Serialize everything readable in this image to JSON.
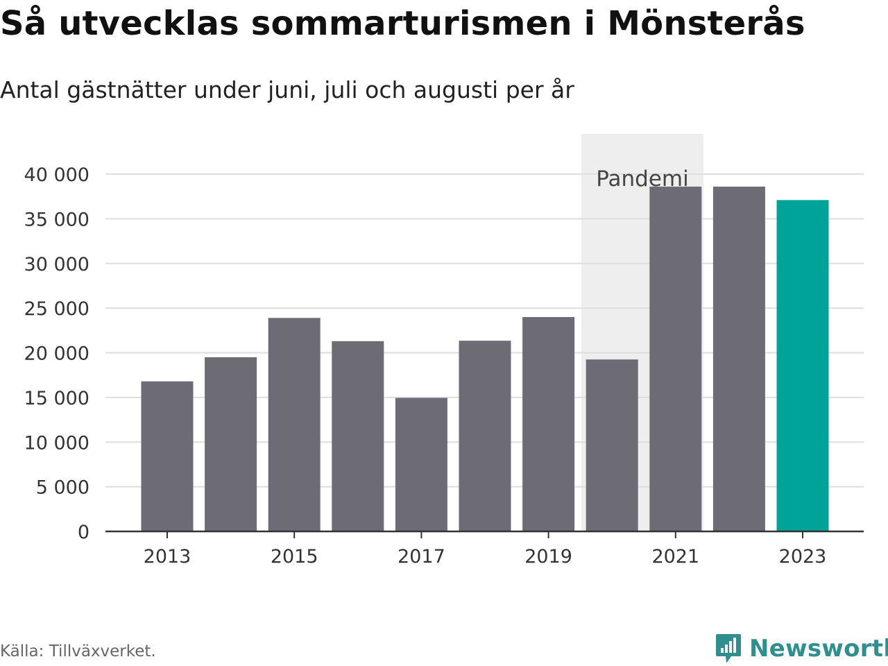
{
  "title": "Så utvecklas sommarturismen i Mönsterås",
  "subtitle": "Antal gästnätter under juni, juli och augusti per år",
  "source": "Källa: Tillväxverket.",
  "logo": {
    "text": "Newsworthy",
    "icon": "newsworthy-chart-bubble-icon"
  },
  "chart_data": {
    "type": "bar",
    "categories": [
      "2013",
      "2014",
      "2015",
      "2016",
      "2017",
      "2018",
      "2019",
      "2020",
      "2021",
      "2022",
      "2023"
    ],
    "values": [
      16800,
      19500,
      23900,
      21300,
      14950,
      21350,
      24000,
      19250,
      38600,
      38600,
      37100
    ],
    "x_tick_labels": [
      "2013",
      "2015",
      "2017",
      "2019",
      "2021",
      "2023"
    ],
    "y_ticks": [
      0,
      5000,
      10000,
      15000,
      20000,
      25000,
      30000,
      35000,
      40000
    ],
    "y_tick_labels": [
      "0",
      "5 000",
      "10 000",
      "15 000",
      "20 000",
      "25 000",
      "30 000",
      "35 000",
      "40 000"
    ],
    "ylim": [
      0,
      40000
    ],
    "grid": true,
    "highlight_category": "2023",
    "annotation": {
      "label": "Pandemi",
      "from": "2020",
      "to": "2021"
    },
    "colors": {
      "bar": "#6d6c74",
      "highlight": "#00a398",
      "band": "#eeeeee",
      "grid": "#dedede",
      "axis": "#333333"
    }
  }
}
